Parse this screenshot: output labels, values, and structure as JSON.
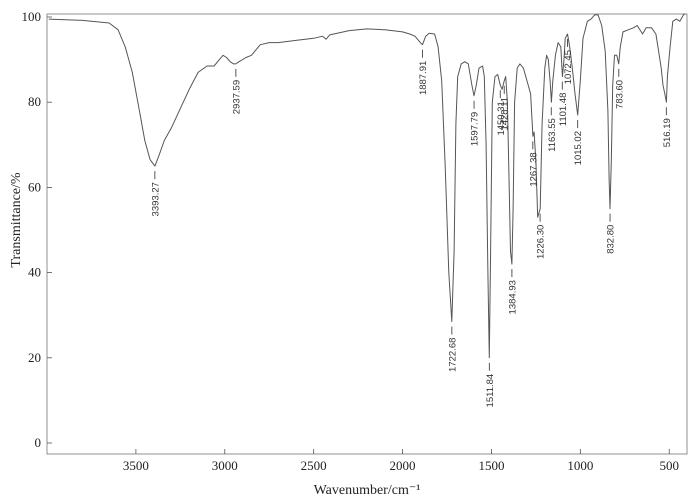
{
  "chart_data": {
    "type": "line",
    "title": "",
    "xlabel": "Wavenumber/cm⁻¹",
    "ylabel": "Transmittance/%",
    "xlim": [
      4000,
      400
    ],
    "ylim": [
      0,
      100
    ],
    "x_reversed": true,
    "x_ticks": [
      3500,
      3000,
      2500,
      2000,
      1500,
      1000,
      500
    ],
    "y_ticks": [
      0,
      20,
      40,
      60,
      80,
      100
    ],
    "grid": false,
    "series": [
      {
        "points": [
          [
            3990,
            99.5
          ],
          [
            3800,
            99.2
          ],
          [
            3650,
            98.6
          ],
          [
            3600,
            97.0
          ],
          [
            3560,
            93.0
          ],
          [
            3520,
            87.0
          ],
          [
            3480,
            78.0
          ],
          [
            3450,
            71.0
          ],
          [
            3420,
            66.5
          ],
          [
            3393,
            65.0
          ],
          [
            3370,
            67.5
          ],
          [
            3340,
            71.0
          ],
          [
            3300,
            74.0
          ],
          [
            3250,
            78.5
          ],
          [
            3200,
            83.0
          ],
          [
            3150,
            87.0
          ],
          [
            3100,
            88.5
          ],
          [
            3060,
            88.5
          ],
          [
            3030,
            90.0
          ],
          [
            3010,
            91.0
          ],
          [
            2990,
            90.5
          ],
          [
            2970,
            89.5
          ],
          [
            2950,
            89.0
          ],
          [
            2938,
            89.0
          ],
          [
            2920,
            89.5
          ],
          [
            2880,
            90.5
          ],
          [
            2850,
            91.0
          ],
          [
            2800,
            93.5
          ],
          [
            2750,
            94.0
          ],
          [
            2700,
            94.0
          ],
          [
            2600,
            94.5
          ],
          [
            2500,
            95.0
          ],
          [
            2450,
            95.5
          ],
          [
            2430,
            94.8
          ],
          [
            2410,
            95.8
          ],
          [
            2300,
            96.8
          ],
          [
            2200,
            97.2
          ],
          [
            2100,
            97.0
          ],
          [
            2000,
            96.5
          ],
          [
            1960,
            96.0
          ],
          [
            1930,
            95.5
          ],
          [
            1900,
            94.0
          ],
          [
            1888,
            93.5
          ],
          [
            1870,
            95.5
          ],
          [
            1850,
            96.2
          ],
          [
            1820,
            96.0
          ],
          [
            1800,
            93.0
          ],
          [
            1780,
            85.0
          ],
          [
            1760,
            65.0
          ],
          [
            1740,
            40.0
          ],
          [
            1723,
            28.5
          ],
          [
            1710,
            45.0
          ],
          [
            1700,
            75.0
          ],
          [
            1690,
            86.0
          ],
          [
            1670,
            89.0
          ],
          [
            1650,
            89.5
          ],
          [
            1630,
            89.0
          ],
          [
            1610,
            84.0
          ],
          [
            1598,
            81.5
          ],
          [
            1585,
            84.0
          ],
          [
            1570,
            88.0
          ],
          [
            1550,
            88.5
          ],
          [
            1540,
            86.0
          ],
          [
            1530,
            70.0
          ],
          [
            1520,
            40.0
          ],
          [
            1512,
            20.0
          ],
          [
            1505,
            45.0
          ],
          [
            1495,
            80.0
          ],
          [
            1480,
            86.0
          ],
          [
            1465,
            86.5
          ],
          [
            1450,
            84.0
          ],
          [
            1440,
            83.0
          ],
          [
            1428,
            85.0
          ],
          [
            1420,
            86.0
          ],
          [
            1410,
            80.0
          ],
          [
            1400,
            60.0
          ],
          [
            1393,
            45.0
          ],
          [
            1385,
            42.0
          ],
          [
            1378,
            55.0
          ],
          [
            1370,
            80.0
          ],
          [
            1355,
            88.0
          ],
          [
            1340,
            89.0
          ],
          [
            1320,
            88.0
          ],
          [
            1300,
            85.0
          ],
          [
            1280,
            82.0
          ],
          [
            1267,
            72.0
          ],
          [
            1260,
            73.0
          ],
          [
            1250,
            66.0
          ],
          [
            1240,
            53.0
          ],
          [
            1226,
            55.0
          ],
          [
            1215,
            75.0
          ],
          [
            1200,
            88.0
          ],
          [
            1190,
            91.0
          ],
          [
            1180,
            90.0
          ],
          [
            1170,
            85.0
          ],
          [
            1163,
            80.0
          ],
          [
            1155,
            85.0
          ],
          [
            1140,
            91.0
          ],
          [
            1125,
            94.0
          ],
          [
            1110,
            93.0
          ],
          [
            1101,
            86.0
          ],
          [
            1092,
            90.0
          ],
          [
            1085,
            95.0
          ],
          [
            1072,
            96.0
          ],
          [
            1060,
            93.0
          ],
          [
            1045,
            88.0
          ],
          [
            1030,
            82.0
          ],
          [
            1015,
            77.0
          ],
          [
            1000,
            85.0
          ],
          [
            985,
            95.0
          ],
          [
            960,
            99.0
          ],
          [
            940,
            99.5
          ],
          [
            920,
            100.5
          ],
          [
            900,
            100.5
          ],
          [
            880,
            98.0
          ],
          [
            860,
            92.0
          ],
          [
            845,
            78.0
          ],
          [
            838,
            62.0
          ],
          [
            833,
            55.0
          ],
          [
            826,
            66.0
          ],
          [
            818,
            84.0
          ],
          [
            808,
            91.0
          ],
          [
            795,
            91.0
          ],
          [
            784,
            89.0
          ],
          [
            775,
            93.0
          ],
          [
            760,
            96.5
          ],
          [
            730,
            97.0
          ],
          [
            700,
            97.5
          ],
          [
            680,
            98.0
          ],
          [
            650,
            96.0
          ],
          [
            630,
            97.5
          ],
          [
            600,
            97.5
          ],
          [
            575,
            96.0
          ],
          [
            560,
            92.0
          ],
          [
            545,
            88.0
          ],
          [
            535,
            84.0
          ],
          [
            525,
            82.0
          ],
          [
            516,
            80.0
          ],
          [
            510,
            86.0
          ],
          [
            495,
            93.0
          ],
          [
            480,
            99.0
          ],
          [
            460,
            99.5
          ],
          [
            440,
            99.0
          ],
          [
            420,
            100.5
          ],
          [
            410,
            100.8
          ]
        ]
      }
    ],
    "annotations": [
      {
        "label": "3393.27",
        "x": 3393.27,
        "y": 65.0
      },
      {
        "label": "2937.59",
        "x": 2937.59,
        "y": 89.0
      },
      {
        "label": "1887.91",
        "x": 1887.91,
        "y": 93.5
      },
      {
        "label": "1722.68",
        "x": 1722.68,
        "y": 28.5
      },
      {
        "label": "1597.79",
        "x": 1597.79,
        "y": 81.5
      },
      {
        "label": "1511.84",
        "x": 1511.84,
        "y": 20.0
      },
      {
        "label": "1450.31",
        "x": 1450.31,
        "y": 84.0
      },
      {
        "label": "1428.11",
        "x": 1428.11,
        "y": 85.0
      },
      {
        "label": "1384.93",
        "x": 1384.93,
        "y": 42.0
      },
      {
        "label": "1267.38",
        "x": 1267.38,
        "y": 72.0
      },
      {
        "label": "1226.30",
        "x": 1226.3,
        "y": 55.0
      },
      {
        "label": "1163.55",
        "x": 1163.55,
        "y": 80.0
      },
      {
        "label": "1101.48",
        "x": 1101.48,
        "y": 86.0
      },
      {
        "label": "1072.45",
        "x": 1072.45,
        "y": 96.0
      },
      {
        "label": "1015.02",
        "x": 1015.02,
        "y": 77.0
      },
      {
        "label": "832.80",
        "x": 832.8,
        "y": 55.0
      },
      {
        "label": "783.60",
        "x": 783.6,
        "y": 89.0
      },
      {
        "label": "516.19",
        "x": 516.19,
        "y": 80.0
      }
    ]
  }
}
